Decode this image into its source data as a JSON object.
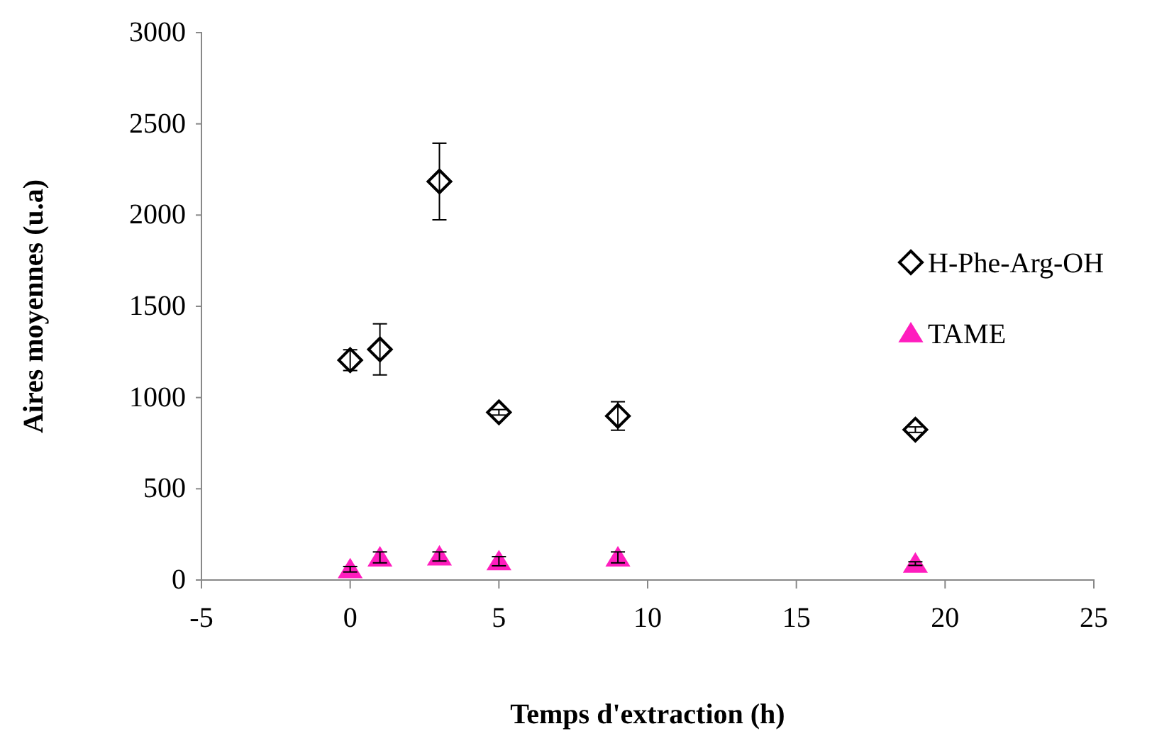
{
  "chart_data": {
    "type": "scatter",
    "xlabel": "Temps d'extraction (h)",
    "ylabel": "Aires moyennes (u.a)",
    "x": [
      0,
      1,
      3,
      5,
      9,
      19
    ],
    "series": [
      {
        "name": "H-Phe-Arg-OH",
        "color": "#000000",
        "marker": "diamond",
        "values": [
          1205,
          1264,
          2184,
          919,
          899,
          824
        ],
        "errors": [
          57,
          140,
          210,
          15,
          78,
          15
        ]
      },
      {
        "name": "TAME",
        "color": "#ff1dbe",
        "marker": "triangle",
        "values": [
          59,
          124,
          129,
          103,
          124,
          90
        ],
        "errors": [
          15,
          30,
          25,
          25,
          30,
          10
        ]
      }
    ],
    "xlim": [
      -5,
      25
    ],
    "xticks": [
      -5,
      0,
      5,
      10,
      15,
      20,
      25
    ],
    "ylim": [
      0,
      3000
    ],
    "yticks": [
      0,
      500,
      1000,
      1500,
      2000,
      2500,
      3000
    ],
    "grid": false,
    "legend": "right"
  }
}
